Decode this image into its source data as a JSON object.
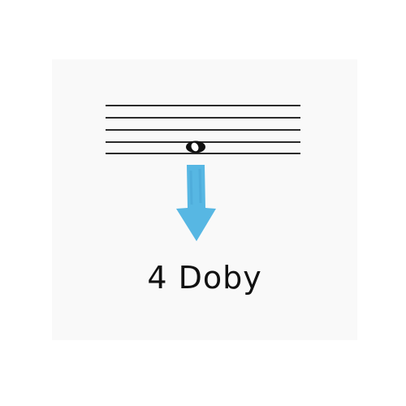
{
  "illustration": {
    "caption": "4 Doby",
    "note_symbol": "whole-note-icon",
    "arrow_symbol": "arrow-down-icon",
    "colors": {
      "card_background": "#f9f9f9",
      "staff_lines": "#2b2b2b",
      "note": "#111111",
      "arrow": "#57b7e3"
    }
  }
}
